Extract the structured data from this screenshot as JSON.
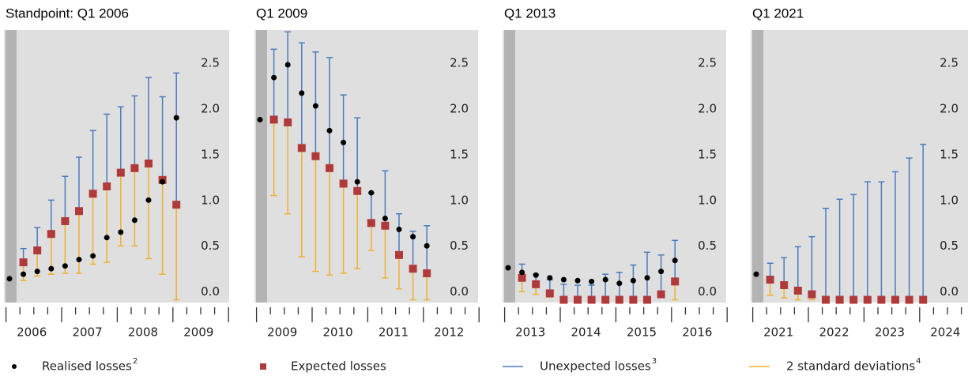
{
  "legend": [
    {
      "name": "Realised losses",
      "note": "2",
      "color": "#000000",
      "marker": "dot"
    },
    {
      "name": "Expected losses",
      "note": null,
      "color": "#b03a3a",
      "marker": "square"
    },
    {
      "name": "Unexpected losses",
      "note": "3",
      "color": "#4a7bbf",
      "marker": "line"
    },
    {
      "name": "2 standard deviations",
      "note": "4",
      "color": "#f0b030",
      "marker": "line"
    }
  ],
  "chart_data": [
    {
      "type": "errorbar",
      "title": "Standpoint: Q1 2006",
      "year_labels": [
        "2006",
        "2007",
        "2008",
        "2009"
      ],
      "series": [
        {
          "values": [
            0.23,
            0.28,
            0.31,
            0.34,
            0.37,
            0.44,
            0.48,
            0.68,
            0.74,
            0.87,
            1.09,
            1.29,
            1.99
          ]
        },
        {
          "values": [
            null,
            0.41,
            0.54,
            0.72,
            0.86,
            0.97,
            1.16,
            1.24,
            1.39,
            1.44,
            1.49,
            1.31,
            1.04
          ]
        },
        {
          "values": [
            null,
            0.56,
            0.79,
            1.09,
            1.35,
            1.56,
            1.85,
            2.03,
            2.11,
            2.23,
            2.43,
            2.22,
            2.48
          ]
        },
        {
          "values": [
            null,
            0.21,
            0.26,
            0.28,
            0.29,
            0.29,
            0.39,
            0.41,
            0.59,
            0.59,
            0.45,
            0.28,
            0
          ]
        }
      ],
      "ylim": [
        -0.03,
        2.95
      ],
      "yticks": [
        {
          "value": 0,
          "label": "0.0"
        },
        0.5,
        {
          "value": 1,
          "label": "1.0"
        },
        1.5,
        {
          "value": 2,
          "label": "2.0"
        },
        2.5
      ]
    },
    {
      "type": "errorbar",
      "title": "Q1 2009",
      "year_labels": [
        "2009",
        "2010",
        "2011",
        "2012"
      ],
      "series": [
        {
          "values": [
            1.97,
            2.43,
            2.57,
            2.26,
            2.12,
            1.85,
            1.72,
            1.29,
            1.17,
            0.89,
            0.77,
            0.69,
            0.59
          ]
        },
        {
          "values": [
            null,
            1.97,
            1.94,
            1.66,
            1.57,
            1.44,
            1.27,
            1.19,
            0.84,
            0.81,
            0.49,
            0.34,
            0.29
          ]
        },
        {
          "values": [
            null,
            2.74,
            2.93,
            2.81,
            2.71,
            2.65,
            2.24,
            1.99,
            1.17,
            1.41,
            0.94,
            0.75,
            0.81
          ]
        },
        {
          "values": [
            null,
            1.14,
            0.94,
            0.47,
            0.31,
            0.27,
            0.29,
            0.34,
            0.54,
            0.24,
            0.12,
            0,
            0
          ]
        }
      ],
      "ylim": [
        -0.03,
        2.95
      ],
      "yticks": [
        {
          "value": 0,
          "label": "0.0"
        },
        0.5,
        {
          "value": 1,
          "label": "1.0"
        },
        1.5,
        {
          "value": 2,
          "label": "2.0"
        },
        2.5
      ]
    },
    {
      "type": "errorbar",
      "title": "Q1 2013",
      "year_labels": [
        "2013",
        "2014",
        "2015",
        "2016"
      ],
      "series": [
        {
          "values": [
            0.35,
            0.3,
            0.27,
            0.24,
            0.22,
            0.21,
            0.2,
            0.22,
            0.18,
            0.21,
            0.24,
            0.31,
            0.43
          ]
        },
        {
          "values": [
            null,
            0.24,
            0.17,
            0.07,
            0,
            0,
            0,
            0,
            0,
            0,
            0,
            0.06,
            0.2
          ]
        },
        {
          "values": [
            null,
            0.39,
            0.28,
            0.22,
            0.17,
            0.16,
            0.16,
            0.28,
            0.3,
            0.38,
            0.52,
            0.49,
            0.65
          ]
        },
        {
          "values": [
            null,
            0.09,
            0.06,
            0.03,
            null,
            null,
            null,
            null,
            null,
            null,
            null,
            null,
            0
          ]
        }
      ],
      "ylim": [
        -0.03,
        2.95
      ],
      "yticks": [
        {
          "value": 0,
          "label": "0.0"
        },
        0.5,
        {
          "value": 1,
          "label": "1.0"
        },
        1.5,
        {
          "value": 2,
          "label": "2.0"
        },
        2.5
      ]
    },
    {
      "type": "errorbar",
      "title": "Q1 2021",
      "year_labels": [
        "2021",
        "2022",
        "2023",
        "2024"
      ],
      "series": [
        {
          "values": [
            0.28,
            null,
            null,
            null,
            null,
            null,
            null,
            null,
            null,
            null,
            null,
            null,
            null
          ]
        },
        {
          "values": [
            null,
            0.22,
            0.16,
            0.1,
            0.06,
            0,
            0,
            0,
            0,
            0,
            0,
            0,
            0
          ]
        },
        {
          "values": [
            null,
            0.4,
            0.46,
            0.58,
            0.69,
            1.0,
            1.1,
            1.15,
            1.29,
            1.29,
            1.4,
            1.55,
            1.7
          ]
        },
        {
          "values": [
            null,
            0.05,
            0.02,
            0,
            0,
            null,
            null,
            null,
            null,
            null,
            null,
            null,
            null
          ]
        }
      ],
      "ylim": [
        -0.03,
        2.95
      ],
      "yticks": [
        {
          "value": 0,
          "label": "0.0"
        },
        0.5,
        {
          "value": 1,
          "label": "1.0"
        },
        1.5,
        {
          "value": 2,
          "label": "2.0"
        },
        2.5
      ]
    }
  ]
}
